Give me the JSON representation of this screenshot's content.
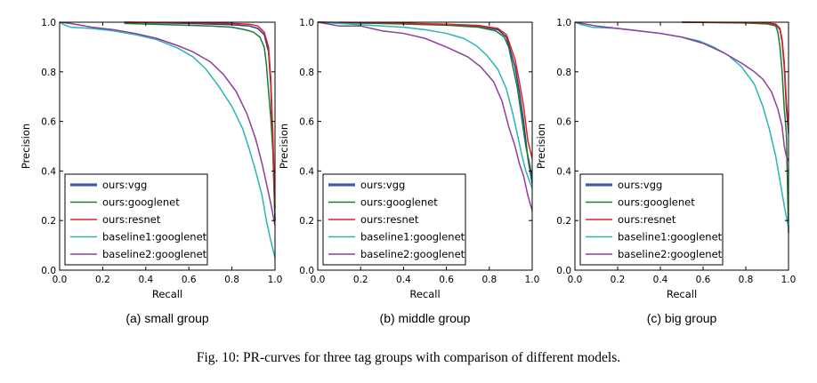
{
  "figure_caption": "Fig. 10: PR-curves for three tag groups with comparison of different models.",
  "colors": {
    "ours:vgg": "#1f3f99",
    "ours:googlenet": "#1e7a2e",
    "ours:resnet": "#e0201b",
    "baseline1:googlenet": "#2ab6b0",
    "baseline2:googlenet": "#8f3d9e"
  },
  "chart_data": [
    {
      "type": "line",
      "subtitle": "(a) small group",
      "xlabel": "Recall",
      "ylabel": "Precision",
      "xlim": [
        0,
        1
      ],
      "ylim": [
        0,
        1
      ],
      "xticks": [
        "0.0",
        "0.2",
        "0.4",
        "0.6",
        "0.8",
        "1.0"
      ],
      "yticks": [
        "0.0",
        "0.2",
        "0.4",
        "0.6",
        "0.8",
        "1.0"
      ],
      "legend_position": "lower-left",
      "series": [
        {
          "name": "ours:vgg",
          "points": [
            [
              0.3,
              1.0
            ],
            [
              0.6,
              0.995
            ],
            [
              0.8,
              0.99
            ],
            [
              0.88,
              0.985
            ],
            [
              0.92,
              0.975
            ],
            [
              0.95,
              0.95
            ],
            [
              0.97,
              0.88
            ],
            [
              0.98,
              0.75
            ],
            [
              0.99,
              0.5
            ],
            [
              1.0,
              0.2
            ]
          ]
        },
        {
          "name": "ours:googlenet",
          "points": [
            [
              0.3,
              0.995
            ],
            [
              0.5,
              0.99
            ],
            [
              0.7,
              0.985
            ],
            [
              0.8,
              0.98
            ],
            [
              0.86,
              0.97
            ],
            [
              0.9,
              0.96
            ],
            [
              0.93,
              0.94
            ],
            [
              0.95,
              0.9
            ],
            [
              0.96,
              0.83
            ],
            [
              0.97,
              0.72
            ],
            [
              0.98,
              0.62
            ],
            [
              0.99,
              0.48
            ],
            [
              1.0,
              0.2
            ]
          ]
        },
        {
          "name": "ours:resnet",
          "points": [
            [
              0.3,
              1.0
            ],
            [
              0.6,
              0.998
            ],
            [
              0.8,
              0.995
            ],
            [
              0.88,
              0.992
            ],
            [
              0.92,
              0.985
            ],
            [
              0.95,
              0.96
            ],
            [
              0.97,
              0.9
            ],
            [
              0.98,
              0.78
            ],
            [
              0.99,
              0.55
            ],
            [
              1.0,
              0.25
            ]
          ]
        },
        {
          "name": "baseline1:googlenet",
          "points": [
            [
              0.0,
              1.0
            ],
            [
              0.02,
              0.99
            ],
            [
              0.05,
              0.98
            ],
            [
              0.15,
              0.975
            ],
            [
              0.25,
              0.965
            ],
            [
              0.35,
              0.95
            ],
            [
              0.45,
              0.93
            ],
            [
              0.55,
              0.895
            ],
            [
              0.62,
              0.86
            ],
            [
              0.68,
              0.81
            ],
            [
              0.74,
              0.74
            ],
            [
              0.8,
              0.66
            ],
            [
              0.85,
              0.57
            ],
            [
              0.88,
              0.49
            ],
            [
              0.91,
              0.4
            ],
            [
              0.94,
              0.3
            ],
            [
              0.96,
              0.2
            ],
            [
              0.98,
              0.12
            ],
            [
              1.0,
              0.05
            ]
          ]
        },
        {
          "name": "baseline2:googlenet",
          "points": [
            [
              0.0,
              1.0
            ],
            [
              0.05,
              0.995
            ],
            [
              0.15,
              0.98
            ],
            [
              0.25,
              0.97
            ],
            [
              0.35,
              0.955
            ],
            [
              0.45,
              0.935
            ],
            [
              0.55,
              0.905
            ],
            [
              0.62,
              0.88
            ],
            [
              0.7,
              0.84
            ],
            [
              0.76,
              0.79
            ],
            [
              0.82,
              0.72
            ],
            [
              0.87,
              0.63
            ],
            [
              0.91,
              0.53
            ],
            [
              0.94,
              0.43
            ],
            [
              0.96,
              0.35
            ],
            [
              0.98,
              0.27
            ],
            [
              1.0,
              0.18
            ]
          ]
        }
      ]
    },
    {
      "type": "line",
      "subtitle": "(b) middle group",
      "xlabel": "Recall",
      "ylabel": "Precision",
      "xlim": [
        0,
        1
      ],
      "ylim": [
        0,
        1
      ],
      "xticks": [
        "0.0",
        "0.2",
        "0.4",
        "0.6",
        "0.8",
        "1.0"
      ],
      "yticks": [
        "0.0",
        "0.2",
        "0.4",
        "0.6",
        "0.8",
        "1.0"
      ],
      "legend_position": "lower-left",
      "series": [
        {
          "name": "ours:vgg",
          "points": [
            [
              0.0,
              1.0
            ],
            [
              0.3,
              0.995
            ],
            [
              0.6,
              0.99
            ],
            [
              0.75,
              0.985
            ],
            [
              0.84,
              0.97
            ],
            [
              0.88,
              0.94
            ],
            [
              0.9,
              0.88
            ],
            [
              0.92,
              0.82
            ],
            [
              0.94,
              0.72
            ],
            [
              0.96,
              0.6
            ],
            [
              0.98,
              0.45
            ],
            [
              1.0,
              0.35
            ]
          ]
        },
        {
          "name": "ours:googlenet",
          "points": [
            [
              0.0,
              1.0
            ],
            [
              0.3,
              0.995
            ],
            [
              0.6,
              0.988
            ],
            [
              0.75,
              0.98
            ],
            [
              0.83,
              0.965
            ],
            [
              0.87,
              0.94
            ],
            [
              0.89,
              0.9
            ],
            [
              0.91,
              0.82
            ],
            [
              0.93,
              0.74
            ],
            [
              0.95,
              0.62
            ],
            [
              0.97,
              0.5
            ],
            [
              0.99,
              0.42
            ],
            [
              1.0,
              0.37
            ]
          ]
        },
        {
          "name": "ours:resnet",
          "points": [
            [
              0.0,
              1.0
            ],
            [
              0.3,
              0.998
            ],
            [
              0.6,
              0.992
            ],
            [
              0.75,
              0.987
            ],
            [
              0.84,
              0.975
            ],
            [
              0.88,
              0.95
            ],
            [
              0.9,
              0.9
            ],
            [
              0.92,
              0.85
            ],
            [
              0.94,
              0.76
            ],
            [
              0.96,
              0.66
            ],
            [
              0.98,
              0.52
            ],
            [
              1.0,
              0.45
            ]
          ]
        },
        {
          "name": "baseline1:googlenet",
          "points": [
            [
              0.0,
              1.0
            ],
            [
              0.1,
              0.995
            ],
            [
              0.2,
              0.99
            ],
            [
              0.3,
              0.985
            ],
            [
              0.4,
              0.98
            ],
            [
              0.5,
              0.97
            ],
            [
              0.6,
              0.955
            ],
            [
              0.68,
              0.935
            ],
            [
              0.74,
              0.905
            ],
            [
              0.79,
              0.865
            ],
            [
              0.84,
              0.81
            ],
            [
              0.88,
              0.73
            ],
            [
              0.91,
              0.63
            ],
            [
              0.93,
              0.55
            ],
            [
              0.95,
              0.47
            ],
            [
              0.97,
              0.4
            ],
            [
              1.0,
              0.33
            ]
          ]
        },
        {
          "name": "baseline2:googlenet",
          "points": [
            [
              0.0,
              1.0
            ],
            [
              0.1,
              0.985
            ],
            [
              0.2,
              0.985
            ],
            [
              0.3,
              0.965
            ],
            [
              0.4,
              0.955
            ],
            [
              0.5,
              0.935
            ],
            [
              0.6,
              0.9
            ],
            [
              0.7,
              0.86
            ],
            [
              0.76,
              0.82
            ],
            [
              0.82,
              0.76
            ],
            [
              0.86,
              0.68
            ],
            [
              0.89,
              0.58
            ],
            [
              0.92,
              0.5
            ],
            [
              0.94,
              0.43
            ],
            [
              0.96,
              0.38
            ],
            [
              0.98,
              0.3
            ],
            [
              1.0,
              0.24
            ]
          ]
        }
      ]
    },
    {
      "type": "line",
      "subtitle": "(c) big group",
      "xlabel": "Recall",
      "ylabel": "Precision",
      "xlim": [
        0,
        1
      ],
      "ylim": [
        0,
        1
      ],
      "xticks": [
        "0.0",
        "0.2",
        "0.4",
        "0.6",
        "0.8",
        "1.0"
      ],
      "yticks": [
        "0.0",
        "0.2",
        "0.4",
        "0.6",
        "0.8",
        "1.0"
      ],
      "legend_position": "lower-left",
      "series": [
        {
          "name": "ours:vgg",
          "points": [
            [
              0.5,
              1.0
            ],
            [
              0.8,
              0.998
            ],
            [
              0.9,
              0.995
            ],
            [
              0.94,
              0.99
            ],
            [
              0.96,
              0.97
            ],
            [
              0.97,
              0.92
            ],
            [
              0.98,
              0.82
            ],
            [
              0.99,
              0.65
            ],
            [
              1.0,
              0.55
            ]
          ]
        },
        {
          "name": "ours:googlenet",
          "points": [
            [
              0.5,
              1.0
            ],
            [
              0.8,
              0.997
            ],
            [
              0.9,
              0.993
            ],
            [
              0.94,
              0.985
            ],
            [
              0.95,
              0.96
            ],
            [
              0.96,
              0.9
            ],
            [
              0.97,
              0.8
            ],
            [
              0.98,
              0.65
            ],
            [
              0.99,
              0.55
            ],
            [
              1.0,
              0.15
            ]
          ]
        },
        {
          "name": "ours:resnet",
          "points": [
            [
              0.5,
              1.0
            ],
            [
              0.8,
              0.999
            ],
            [
              0.9,
              0.997
            ],
            [
              0.94,
              0.993
            ],
            [
              0.96,
              0.975
            ],
            [
              0.97,
              0.93
            ],
            [
              0.98,
              0.84
            ],
            [
              0.99,
              0.68
            ],
            [
              1.0,
              0.57
            ]
          ]
        },
        {
          "name": "baseline1:googlenet",
          "points": [
            [
              0.0,
              1.0
            ],
            [
              0.03,
              0.99
            ],
            [
              0.08,
              0.98
            ],
            [
              0.2,
              0.975
            ],
            [
              0.3,
              0.965
            ],
            [
              0.4,
              0.955
            ],
            [
              0.5,
              0.94
            ],
            [
              0.58,
              0.925
            ],
            [
              0.65,
              0.9
            ],
            [
              0.72,
              0.865
            ],
            [
              0.78,
              0.82
            ],
            [
              0.84,
              0.75
            ],
            [
              0.88,
              0.66
            ],
            [
              0.91,
              0.57
            ],
            [
              0.94,
              0.46
            ],
            [
              0.96,
              0.36
            ],
            [
              0.98,
              0.26
            ],
            [
              1.0,
              0.17
            ]
          ]
        },
        {
          "name": "baseline2:googlenet",
          "points": [
            [
              0.0,
              1.0
            ],
            [
              0.1,
              0.985
            ],
            [
              0.2,
              0.975
            ],
            [
              0.3,
              0.965
            ],
            [
              0.4,
              0.955
            ],
            [
              0.5,
              0.94
            ],
            [
              0.6,
              0.915
            ],
            [
              0.7,
              0.875
            ],
            [
              0.78,
              0.835
            ],
            [
              0.84,
              0.8
            ],
            [
              0.88,
              0.77
            ],
            [
              0.92,
              0.72
            ],
            [
              0.95,
              0.65
            ],
            [
              0.97,
              0.58
            ],
            [
              0.98,
              0.5
            ],
            [
              0.99,
              0.46
            ],
            [
              1.0,
              0.44
            ]
          ]
        }
      ]
    }
  ]
}
